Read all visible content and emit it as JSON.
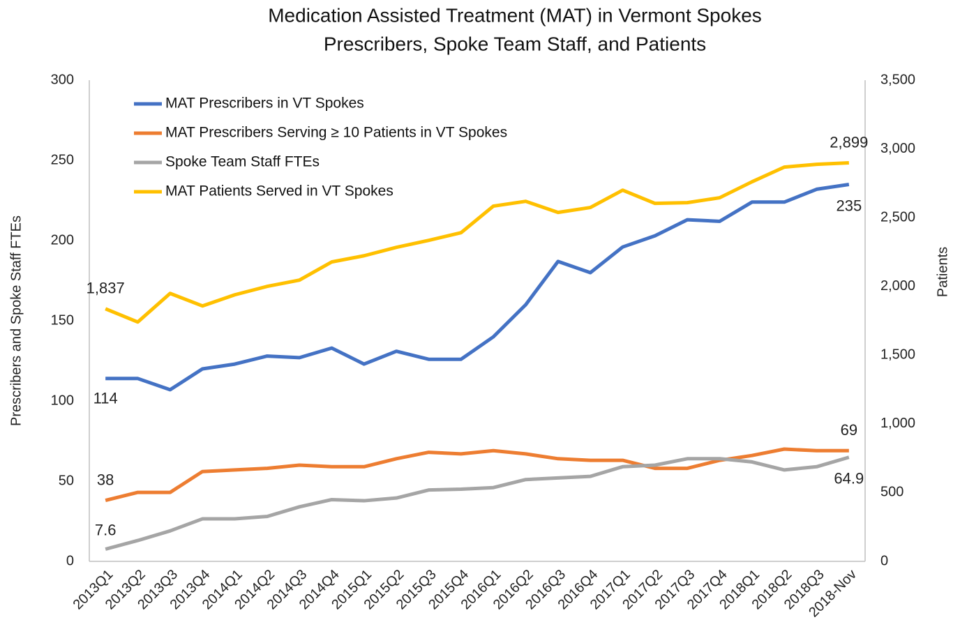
{
  "chart_data": {
    "type": "line",
    "title": "Medication Assisted Treatment (MAT) in Vermont Spokes",
    "subtitle": "Prescribers, Spoke Team Staff, and Patients",
    "y_label": "Prescribers and Spoke Staff FTEs",
    "y2_label": "Patients",
    "categories": [
      "2013Q1",
      "2013Q2",
      "2013Q3",
      "2013Q4",
      "2014Q1",
      "2014Q2",
      "2014Q3",
      "2014Q4",
      "2015Q1",
      "2015Q2",
      "2015Q3",
      "2015Q4",
      "2016Q1",
      "2016Q2",
      "2016Q3",
      "2016Q4",
      "2017Q1",
      "2017Q2",
      "2017Q3",
      "2017Q4",
      "2018Q1",
      "2018Q2",
      "2018Q3",
      "2018-Nov"
    ],
    "ylim": [
      0,
      300
    ],
    "yticks": [
      0,
      50,
      100,
      150,
      200,
      250,
      300
    ],
    "y2lim": [
      0,
      3500
    ],
    "y2ticks": [
      0,
      500,
      {
        "value": 1000,
        "label": "1,000"
      },
      {
        "value": 1500,
        "label": "1,500"
      },
      {
        "value": 2000,
        "label": "2,000"
      },
      {
        "value": 2500,
        "label": "2,500"
      },
      {
        "value": 3000,
        "label": "3,000"
      },
      {
        "value": 3500,
        "label": "3,500"
      }
    ],
    "legend": "upper left",
    "series": [
      {
        "name": "MAT Prescribers in VT Spokes",
        "color": "#4472c4",
        "values": [
          114,
          114,
          107,
          120,
          123,
          128,
          127,
          133,
          123,
          131,
          126,
          126,
          140,
          160,
          187,
          180,
          196,
          203,
          213,
          212,
          224,
          224,
          232,
          235
        ]
      },
      {
        "name": "MAT Prescribers Serving ≥ 10 Patients in VT Spokes",
        "color": "#ed7d31",
        "values": [
          38,
          43,
          43,
          56,
          57,
          58,
          60,
          59,
          59,
          64,
          68,
          67,
          69,
          67,
          64,
          63,
          63,
          58,
          58,
          63,
          66,
          70,
          69,
          69
        ]
      },
      {
        "name": "Spoke Team Staff FTEs",
        "color": "#a5a5a5",
        "values": [
          7.6,
          13,
          19,
          26.5,
          26.5,
          28,
          34,
          38.5,
          37.8,
          39.5,
          44.5,
          45,
          46,
          51,
          52,
          53,
          59,
          60,
          64,
          64,
          62,
          57,
          59,
          64.9
        ]
      },
      {
        "name": "MAT Patients Served in VT Spokes",
        "color": "#ffc000",
        "axis": "y2",
        "values": [
          1837,
          1741,
          1949,
          1858,
          1939,
          2000,
          2046,
          2178,
          2223,
          2284,
          2335,
          2391,
          2584,
          2619,
          2538,
          2574,
          2700,
          2604,
          2609,
          2645,
          2761,
          2868,
          2888,
          2899
        ],
        "value_labels": [
          "1,837",
          null,
          null,
          null,
          null,
          null,
          null,
          null,
          null,
          null,
          null,
          null,
          null,
          null,
          null,
          null,
          null,
          null,
          null,
          null,
          null,
          null,
          null,
          "2,899"
        ]
      }
    ]
  }
}
